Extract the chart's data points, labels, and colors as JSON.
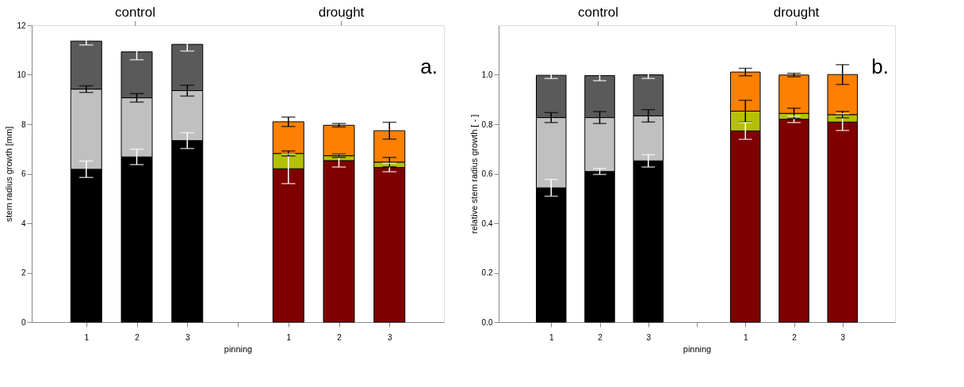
{
  "chart_data": [
    {
      "type": "bar",
      "stacked": true,
      "categories": [
        "1",
        "2",
        "3",
        null,
        "1",
        "2",
        "3"
      ],
      "xlabel": "pinning",
      "ylabel": "stem radius growth [mm]",
      "ylim": [
        0,
        12
      ],
      "yticks": [
        0,
        2,
        4,
        6,
        8,
        10,
        12
      ],
      "grid": false,
      "annotations": [
        "control",
        "drought",
        "a."
      ],
      "series": [
        {
          "color": "#000000",
          "values": [
            6.18,
            6.68,
            7.34,
            null,
            null,
            null,
            null
          ],
          "errors": [
            0.33,
            0.31,
            0.32,
            null,
            null,
            null,
            null
          ]
        },
        {
          "color": "#c0c0c0",
          "values": [
            3.24,
            2.39,
            2.02,
            null,
            null,
            null,
            null
          ],
          "errors": [
            0.13,
            0.17,
            0.22,
            null,
            null,
            null,
            null
          ]
        },
        {
          "color": "#5a5a5a",
          "values": [
            1.94,
            1.86,
            1.87,
            null,
            null,
            null,
            null
          ],
          "errors": [
            0.15,
            0.32,
            0.27,
            null,
            null,
            null,
            null
          ]
        },
        {
          "color": "#7f0000",
          "values": [
            null,
            null,
            null,
            null,
            6.2,
            6.53,
            6.25
          ],
          "errors": [
            null,
            null,
            null,
            null,
            0.6,
            0.26,
            0.17
          ]
        },
        {
          "color": "#b5c000",
          "values": [
            null,
            null,
            null,
            null,
            0.62,
            0.2,
            0.22
          ],
          "errors": [
            null,
            null,
            null,
            null,
            0.1,
            0.07,
            0.19
          ]
        },
        {
          "color": "#ff8000",
          "values": [
            null,
            null,
            null,
            null,
            1.28,
            1.23,
            1.27
          ],
          "errors": [
            null,
            null,
            null,
            null,
            0.19,
            0.07,
            0.34
          ]
        }
      ]
    },
    {
      "type": "bar",
      "stacked": true,
      "categories": [
        "1",
        "2",
        "3",
        null,
        "1",
        "2",
        "3"
      ],
      "xlabel": "pinning",
      "ylabel": "relative stem radius growth [ - ]",
      "ylim": [
        0,
        1.2
      ],
      "yticks": [
        {
          "value": 0,
          "label": "0.0"
        },
        0.2,
        0.4,
        0.6,
        0.8,
        {
          "value": 1,
          "label": "1.0"
        }
      ],
      "grid": false,
      "annotations": [
        "control",
        "drought",
        "b."
      ],
      "series": [
        {
          "color": "#000000",
          "values": [
            0.543,
            0.609,
            0.652,
            null,
            null,
            null,
            null
          ],
          "errors": [
            0.034,
            0.012,
            0.025,
            null,
            null,
            null,
            null
          ]
        },
        {
          "color": "#c0c0c0",
          "values": [
            0.284,
            0.218,
            0.182,
            null,
            null,
            null,
            null
          ],
          "errors": [
            0.02,
            0.024,
            0.025,
            null,
            null,
            null,
            null
          ]
        },
        {
          "color": "#5a5a5a",
          "values": [
            0.171,
            0.17,
            0.166,
            null,
            null,
            null,
            null
          ],
          "errors": [
            0.013,
            0.021,
            0.015,
            null,
            null,
            null,
            null
          ]
        },
        {
          "color": "#7f0000",
          "values": [
            null,
            null,
            null,
            null,
            0.773,
            0.82,
            0.809
          ],
          "errors": [
            null,
            null,
            null,
            null,
            0.034,
            0.013,
            0.034
          ]
        },
        {
          "color": "#b5c000",
          "values": [
            null,
            null,
            null,
            null,
            0.08,
            0.024,
            0.03
          ],
          "errors": [
            null,
            null,
            null,
            null,
            0.044,
            0.021,
            0.013
          ]
        },
        {
          "color": "#ff8000",
          "values": [
            null,
            null,
            null,
            null,
            0.158,
            0.155,
            0.162
          ],
          "errors": [
            null,
            null,
            null,
            null,
            0.015,
            0.007,
            0.04
          ]
        }
      ]
    }
  ]
}
